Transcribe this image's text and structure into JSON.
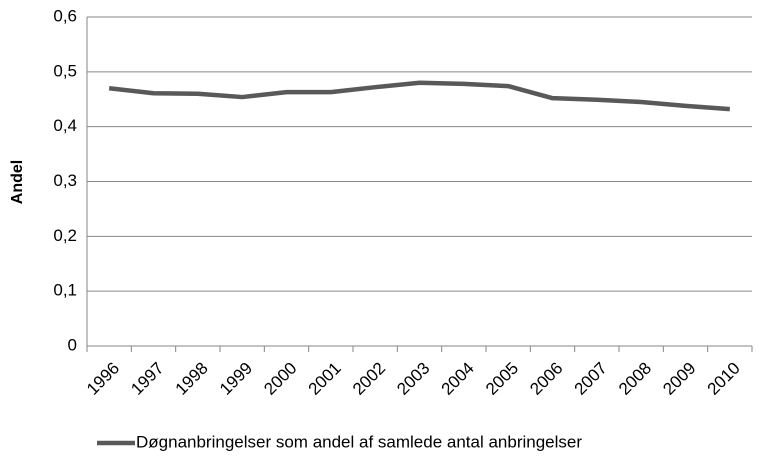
{
  "chart_data": {
    "type": "line",
    "ylabel": "Andel",
    "categories": [
      "1996",
      "1997",
      "1998",
      "1999",
      "2000",
      "2001",
      "2002",
      "2003",
      "2004",
      "2005",
      "2006",
      "2007",
      "2008",
      "2009",
      "2010"
    ],
    "series": [
      {
        "name": "Døgnanbringelser som andel af samlede antal anbringelser",
        "color": "#595959",
        "values": [
          0.47,
          0.461,
          0.46,
          0.454,
          0.463,
          0.463,
          0.472,
          0.48,
          0.478,
          0.474,
          0.452,
          0.449,
          0.445,
          0.438,
          0.432
        ]
      }
    ],
    "ylim": [
      0,
      0.6
    ],
    "yticks": [
      0,
      {
        "value": 0.1,
        "label": "0,1"
      },
      {
        "value": 0.2,
        "label": "0,2"
      },
      {
        "value": 0.3,
        "label": "0,3"
      },
      {
        "value": 0.4,
        "label": "0,4"
      },
      {
        "value": 0.5,
        "label": "0,5"
      },
      {
        "value": 0.6,
        "label": "0,6"
      }
    ],
    "grid": true,
    "legend": "bottom"
  }
}
